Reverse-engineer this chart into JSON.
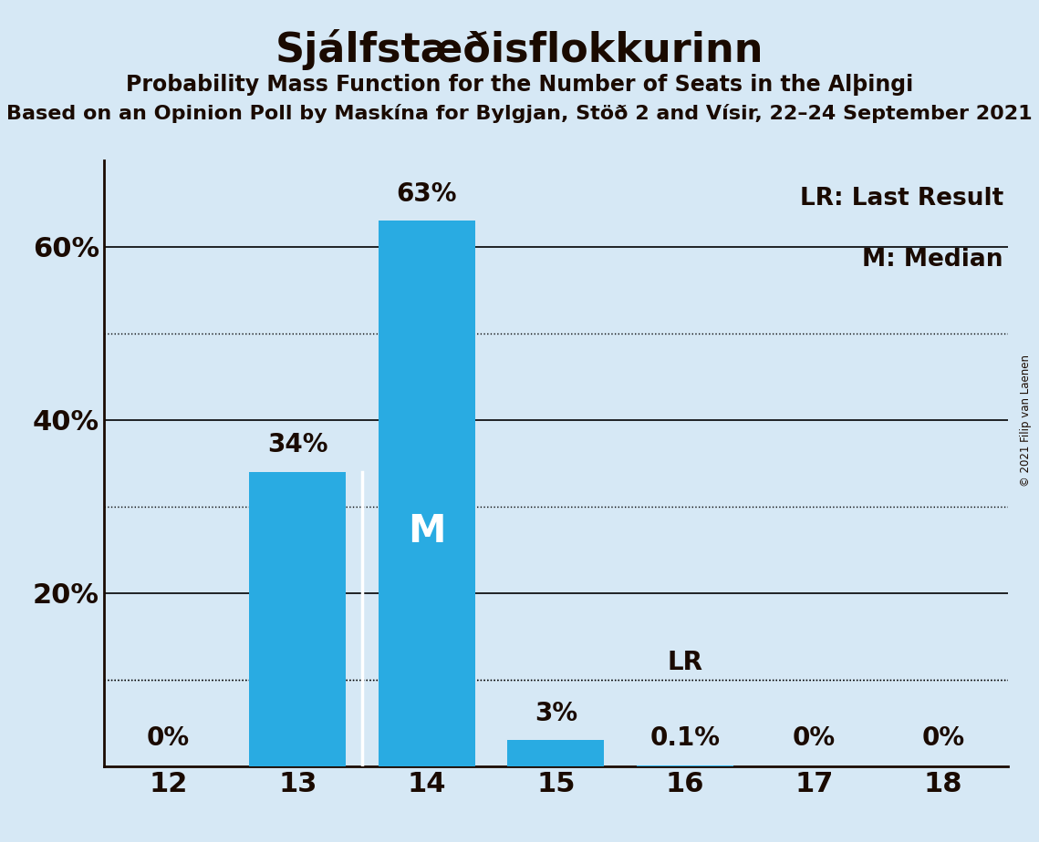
{
  "title": "Sjálfstæðisflokkurinn",
  "subtitle": "Probability Mass Function for the Number of Seats in the Alþingi",
  "subtitle2": "Based on an Opinion Poll by Maskína for Bylgjan, Stöð 2 and Vísir, 22–24 September 2021",
  "copyright": "© 2021 Filip van Laenen",
  "categories": [
    12,
    13,
    14,
    15,
    16,
    17,
    18
  ],
  "values": [
    0.0,
    0.34,
    0.63,
    0.03,
    0.001,
    0.0,
    0.0
  ],
  "labels": [
    "0%",
    "34%",
    "63%",
    "3%",
    "0.1%",
    "0%",
    "0%"
  ],
  "bar_color": "#29ABE2",
  "background_color": "#D6E8F5",
  "text_color": "#1a0a00",
  "median_seat": 14,
  "last_result_seat": 16,
  "median_label": "M",
  "lr_label": "LR",
  "legend_lr": "LR: Last Result",
  "legend_m": "M: Median",
  "ylim": [
    0,
    0.7
  ],
  "solid_lines": [
    0.2,
    0.4,
    0.6
  ],
  "dotted_lines": [
    0.1,
    0.3,
    0.5
  ],
  "ytick_positions": [
    0.2,
    0.4,
    0.6
  ],
  "ytick_labels": [
    "20%",
    "40%",
    "60%"
  ],
  "grid_color": "#000000",
  "bar_width": 0.75
}
